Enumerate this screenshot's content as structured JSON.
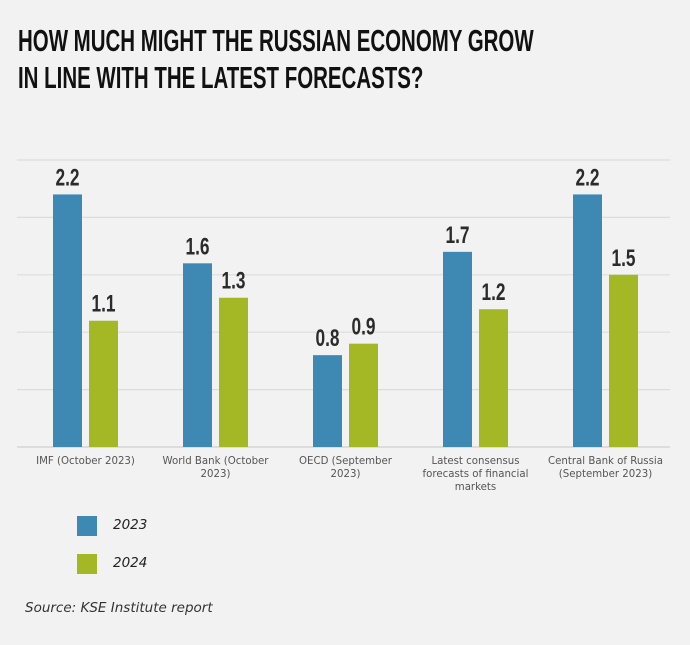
{
  "chart_data": {
    "type": "bar",
    "title": "HOW MUCH MIGHT THE RUSSIAN ECONOMY GROW IN LINE WITH THE LATEST FORECASTS?",
    "title_lines": [
      "HOW MUCH MIGHT THE RUSSIAN ECONOMY GROW",
      "IN LINE WITH THE LATEST FORECASTS?"
    ],
    "categories": [
      "IMF (October 2023)",
      "World Bank (October 2023)",
      "OECD (September 2023)",
      "Latest consensus forecasts of financial markets",
      "Central Bank of Russia (September 2023)"
    ],
    "category_lines": [
      [
        "IMF (October 2023)"
      ],
      [
        "World Bank (October",
        "2023)"
      ],
      [
        "OECD (September",
        "2023)"
      ],
      [
        "Latest consensus",
        "forecasts of financial",
        "markets"
      ],
      [
        "Central Bank of Russia",
        "(September 2023)"
      ]
    ],
    "series": [
      {
        "name": "2023",
        "color": "#3e88b4",
        "values": [
          2.2,
          1.6,
          0.8,
          1.7,
          2.2
        ]
      },
      {
        "name": "2024",
        "color": "#a4b826",
        "values": [
          1.1,
          1.3,
          0.9,
          1.2,
          1.5
        ]
      }
    ],
    "xlabel": "",
    "ylabel": "",
    "ylim": [
      0,
      2.5
    ],
    "gridline_step": 0.5,
    "grid": true,
    "data_labels": true,
    "legend_placement": "bottom-left",
    "source": "Source: KSE Institute report"
  }
}
